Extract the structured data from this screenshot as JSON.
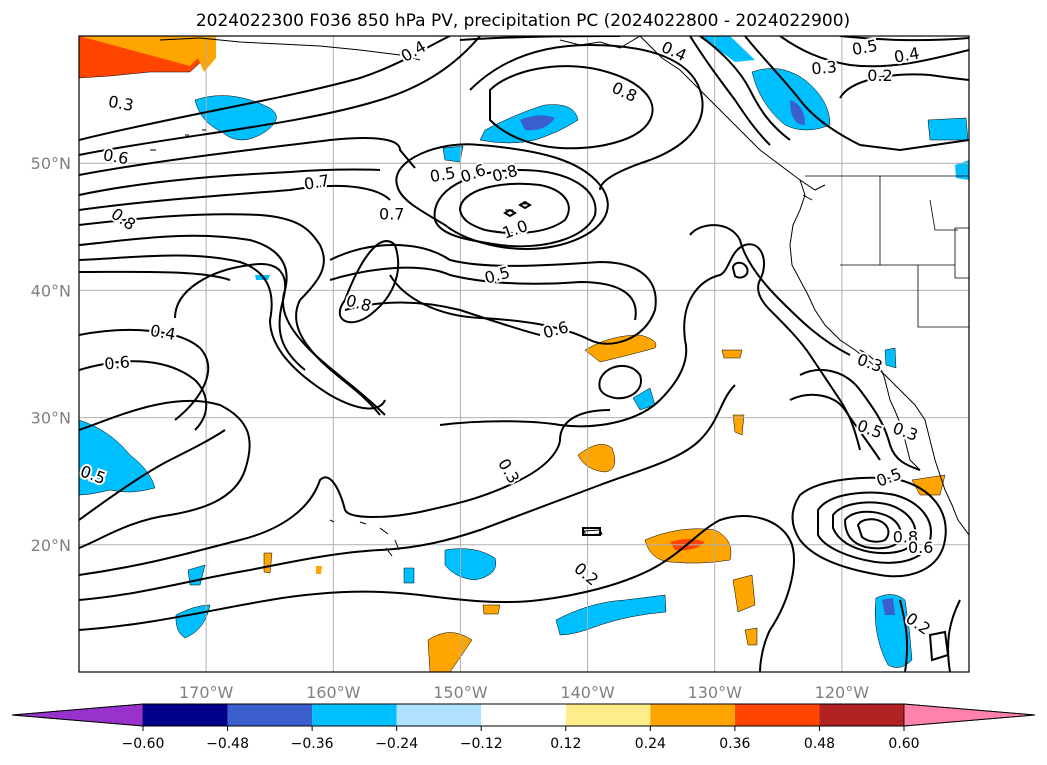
{
  "chart_data": {
    "type": "contour-map",
    "title": "2024022300 F036 850 hPa PV, precipitation PC (2024022800 - 2024022900)",
    "x_axis": {
      "range": [
        -180,
        -110
      ],
      "ticks": [
        -170,
        -160,
        -150,
        -140,
        -130,
        -120
      ],
      "tick_labels": [
        "170°W",
        "160°W",
        "150°W",
        "140°W",
        "130°W",
        "120°W"
      ]
    },
    "y_axis": {
      "range": [
        10,
        60
      ],
      "ticks": [
        20,
        30,
        40,
        50
      ],
      "tick_labels": [
        "20°N",
        "30°N",
        "40°N",
        "50°N"
      ]
    },
    "grid": true,
    "colorbar": {
      "orientation": "horizontal",
      "boundaries": [
        -0.6,
        -0.48,
        -0.36,
        -0.24,
        -0.12,
        0.12,
        0.24,
        0.36,
        0.48,
        0.6
      ],
      "tick_labels": [
        "−0.60",
        "−0.48",
        "−0.36",
        "−0.24",
        "−0.12",
        "0.12",
        "0.24",
        "0.36",
        "0.48",
        "0.60"
      ],
      "colors": [
        "#9932cc",
        "#00008b",
        "#3a5fcd",
        "#00bfff",
        "#b0e2ff",
        "#ffffff",
        "#ffec8b",
        "#ffa500",
        "#ff4500",
        "#b22222",
        "#ff82ab"
      ]
    },
    "pv_contour_labels": [
      {
        "text": "0.4",
        "lon": -153.7,
        "lat": 58.8,
        "angle": -30
      },
      {
        "text": "0.4",
        "lon": -133.2,
        "lat": 58.8,
        "angle": 25
      },
      {
        "text": "0.5",
        "lon": -118.2,
        "lat": 59.1,
        "angle": -10
      },
      {
        "text": "0.4",
        "lon": -114.9,
        "lat": 58.5,
        "angle": -10
      },
      {
        "text": "0.3",
        "lon": -121.4,
        "lat": 57.5,
        "angle": -5
      },
      {
        "text": "0.2",
        "lon": -117.0,
        "lat": 56.9,
        "angle": 0
      },
      {
        "text": "0.8",
        "lon": -137.1,
        "lat": 55.6,
        "angle": 25
      },
      {
        "text": "0.3",
        "lon": -176.7,
        "lat": 54.7,
        "angle": 10
      },
      {
        "text": "0.6",
        "lon": -177.1,
        "lat": 50.5,
        "angle": 10
      },
      {
        "text": "0.7",
        "lon": -161.3,
        "lat": 48.5,
        "angle": -10
      },
      {
        "text": "0.5",
        "lon": -151.4,
        "lat": 49.1,
        "angle": -10
      },
      {
        "text": "0.6",
        "lon": -149.0,
        "lat": 49.2,
        "angle": -20
      },
      {
        "text": "0.8",
        "lon": -146.5,
        "lat": 49.2,
        "angle": -15
      },
      {
        "text": "0.8",
        "lon": -176.5,
        "lat": 45.6,
        "angle": 35
      },
      {
        "text": "0.7",
        "lon": -155.4,
        "lat": 46.0,
        "angle": 0
      },
      {
        "text": "1.0",
        "lon": -145.7,
        "lat": 44.8,
        "angle": -20
      },
      {
        "text": "0.5",
        "lon": -147.1,
        "lat": 41.2,
        "angle": -15
      },
      {
        "text": "0.8",
        "lon": -158.0,
        "lat": 39.0,
        "angle": 15
      },
      {
        "text": "0.4",
        "lon": -173.4,
        "lat": 36.7,
        "angle": 10
      },
      {
        "text": "0.6",
        "lon": -142.5,
        "lat": 36.9,
        "angle": -15
      },
      {
        "text": "0.6",
        "lon": -177.0,
        "lat": 34.3,
        "angle": -5
      },
      {
        "text": "0.3",
        "lon": -117.8,
        "lat": 34.3,
        "angle": 20
      },
      {
        "text": "0.5",
        "lon": -117.8,
        "lat": 29.1,
        "angle": 20
      },
      {
        "text": "0.3",
        "lon": -115.0,
        "lat": 28.9,
        "angle": 20
      },
      {
        "text": "0.5",
        "lon": -178.9,
        "lat": 25.5,
        "angle": 20
      },
      {
        "text": "0.3",
        "lon": -146.2,
        "lat": 25.8,
        "angle": 60
      },
      {
        "text": "0.5",
        "lon": -116.3,
        "lat": 25.3,
        "angle": -20
      },
      {
        "text": "0.8",
        "lon": -115.0,
        "lat": 20.6,
        "angle": 0
      },
      {
        "text": "0.6",
        "lon": -113.8,
        "lat": 19.8,
        "angle": 0
      },
      {
        "text": "0.2",
        "lon": -140.1,
        "lat": 17.7,
        "angle": 40
      },
      {
        "text": "0.2",
        "lon": -114.0,
        "lat": 13.8,
        "angle": 35
      }
    ]
  }
}
